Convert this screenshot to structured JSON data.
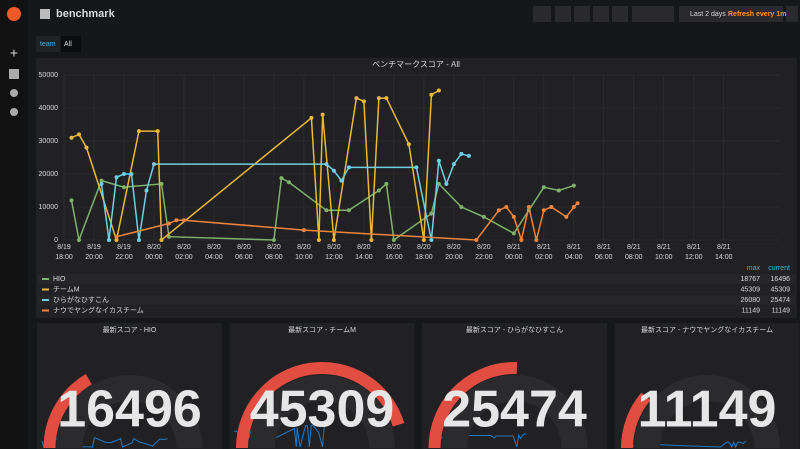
{
  "header": {
    "title": "benchmark",
    "time_range": "Last 2 days",
    "refresh": "Refresh every 1m"
  },
  "variables": [
    {
      "label": "team",
      "value": "All"
    }
  ],
  "chart_data": {
    "type": "line",
    "title": "ベンチマークスコア - All",
    "xlim": [
      "8/19 18:00",
      "8/21 17:45"
    ],
    "xticks": [
      {
        "date": "8/19",
        "time": "18:00"
      },
      {
        "date": "8/19",
        "time": "20:00"
      },
      {
        "date": "8/19",
        "time": "22:00"
      },
      {
        "date": "8/20",
        "time": "00:00"
      },
      {
        "date": "8/20",
        "time": "02:00"
      },
      {
        "date": "8/20",
        "time": "04:00"
      },
      {
        "date": "8/20",
        "time": "06:00"
      },
      {
        "date": "8/20",
        "time": "08:00"
      },
      {
        "date": "8/20",
        "time": "10:00"
      },
      {
        "date": "8/20",
        "time": "12:00"
      },
      {
        "date": "8/20",
        "time": "14:00"
      },
      {
        "date": "8/20",
        "time": "16:00"
      },
      {
        "date": "8/20",
        "time": "18:00"
      },
      {
        "date": "8/20",
        "time": "20:00"
      },
      {
        "date": "8/20",
        "time": "22:00"
      },
      {
        "date": "8/21",
        "time": "00:00"
      },
      {
        "date": "8/21",
        "time": "02:00"
      },
      {
        "date": "8/21",
        "time": "04:00"
      },
      {
        "date": "8/21",
        "time": "06:00"
      },
      {
        "date": "8/21",
        "time": "08:00"
      },
      {
        "date": "8/21",
        "time": "10:00"
      },
      {
        "date": "8/21",
        "time": "12:00"
      },
      {
        "date": "8/21",
        "time": "14:00"
      }
    ],
    "ylim": [
      0,
      50000
    ],
    "yticks": [
      0,
      10000,
      20000,
      30000,
      40000,
      50000
    ],
    "grid": true,
    "legend_columns": [
      "max",
      "current"
    ],
    "series": [
      {
        "name": "HIO",
        "color": "#7eb26d",
        "max": 18767,
        "current": 16496,
        "x": [
          "8/19 18:30",
          "8/19 19:00",
          "8/19 20:30",
          "8/19 22:00",
          "8/20 00:30",
          "8/20 01:00",
          "8/20 08:00",
          "8/20 08:30",
          "8/20 09:00",
          "8/20 11:30",
          "8/20 13:00",
          "8/20 15:00",
          "8/20 15:30",
          "8/20 16:00",
          "8/20 18:30",
          "8/20 19:00",
          "8/20 20:30",
          "8/20 22:00",
          "8/21 00:00",
          "8/21 01:00",
          "8/21 02:00",
          "8/21 03:00",
          "8/21 04:00"
        ],
        "values": [
          12000,
          0,
          18000,
          16000,
          17000,
          1000,
          0,
          18767,
          17500,
          9000,
          9000,
          15000,
          17000,
          0,
          8000,
          17000,
          10000,
          7000,
          2000,
          9000,
          16000,
          15000,
          16496
        ]
      },
      {
        "name": "チームM",
        "color": "#eab839",
        "max": 45309,
        "current": 45309,
        "x": [
          "8/19 18:30",
          "8/19 19:00",
          "8/19 19:30",
          "8/19 21:30",
          "8/19 23:00",
          "8/20 00:15",
          "8/20 00:30",
          "8/20 10:30",
          "8/20 11:00",
          "8/20 11:15",
          "8/20 12:00",
          "8/20 13:30",
          "8/20 14:00",
          "8/20 14:30",
          "8/20 15:00",
          "8/20 15:30",
          "8/20 17:00",
          "8/20 18:00",
          "8/20 18:30",
          "8/20 19:00"
        ],
        "values": [
          31000,
          32000,
          28000,
          0,
          33000,
          33000,
          0,
          37000,
          0,
          38000,
          0,
          43000,
          42000,
          0,
          43000,
          43000,
          29000,
          0,
          44000,
          45309
        ]
      },
      {
        "name": "ひらがなひすこん",
        "color": "#6ed0e0",
        "max": 26080,
        "current": 25474,
        "x": [
          "8/19 20:30",
          "8/19 21:00",
          "8/19 21:30",
          "8/19 22:00",
          "8/19 22:30",
          "8/19 23:00",
          "8/19 23:30",
          "8/20 00:00",
          "8/20 11:30",
          "8/20 12:00",
          "8/20 12:30",
          "8/20 13:00",
          "8/20 17:30",
          "8/20 18:30",
          "8/20 19:00",
          "8/20 19:30",
          "8/20 20:00",
          "8/20 20:30",
          "8/20 21:00"
        ],
        "values": [
          17000,
          0,
          19000,
          20000,
          20000,
          0,
          15000,
          23000,
          23000,
          21000,
          18000,
          22000,
          22000,
          0,
          24000,
          17000,
          23000,
          26080,
          25474
        ]
      },
      {
        "name": "ナウでヤングなイカスチーム",
        "color": "#ef843c",
        "max": 11149,
        "current": 11149,
        "x": [
          "8/19 21:30",
          "8/20 01:00",
          "8/20 01:30",
          "8/20 02:00",
          "8/20 10:00",
          "8/20 21:30",
          "8/20 23:00",
          "8/20 23:30",
          "8/21 00:00",
          "8/21 00:30",
          "8/21 01:00",
          "8/21 01:30",
          "8/21 02:00",
          "8/21 02:30",
          "8/21 03:30",
          "8/21 04:00",
          "8/21 04:15"
        ],
        "values": [
          1000,
          5000,
          6000,
          6000,
          3000,
          0,
          9000,
          10000,
          7000,
          0,
          10000,
          0,
          9000,
          10000,
          7000,
          10000,
          11149
        ]
      }
    ]
  },
  "gauges": [
    {
      "title": "最新スコア - HIO",
      "value": 16496
    },
    {
      "title": "最新スコア - チームM",
      "value": 45309
    },
    {
      "title": "最新スコア - ひらがなひすこん",
      "value": 25474
    },
    {
      "title": "最新スコア - ナウでヤングなイカスチーム",
      "value": 11149
    }
  ]
}
